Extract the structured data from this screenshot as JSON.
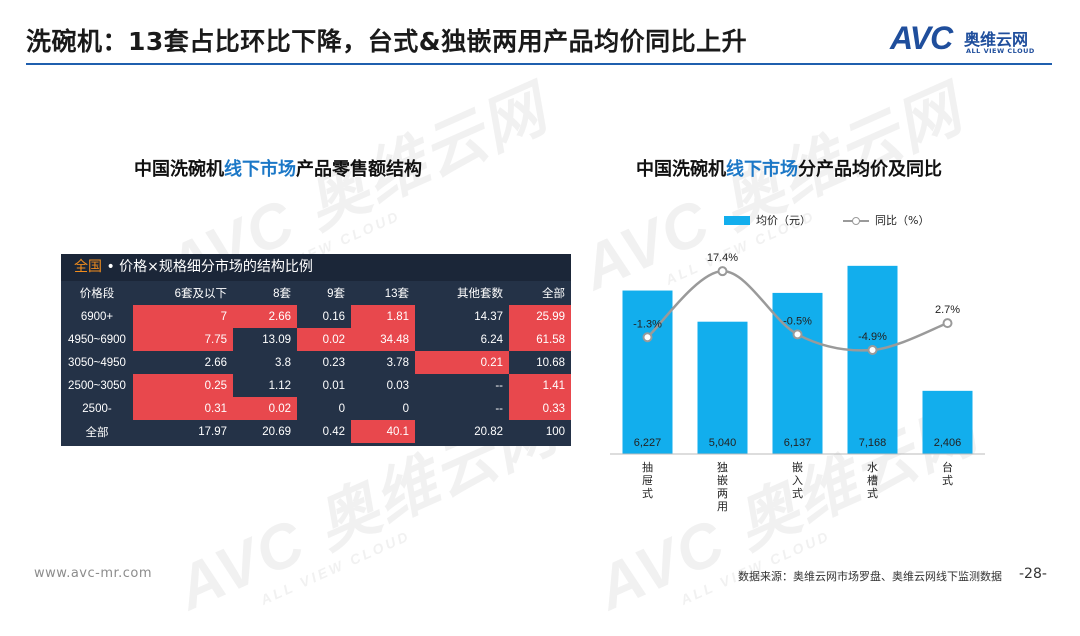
{
  "header": {
    "title": "洗碗机：13套占比环比下降，台式&独嵌两用产品均价同比上升",
    "logo_mark": "AVC",
    "logo_cn": "奥维云网",
    "logo_en": "ALL VIEW CLOUD"
  },
  "watermark": {
    "main": "AVC 奥维云网",
    "sub": "ALL VIEW CLOUD"
  },
  "left": {
    "title_pre": "中国洗碗机",
    "title_hl": "线下市场",
    "title_post": "产品零售额结构",
    "table": {
      "caption_all": "全国",
      "caption_rest": " • 价格×规格细分市场的结构比例",
      "headers": [
        "价格段",
        "6套及以下",
        "8套",
        "9套",
        "13套",
        "其他套数",
        "全部"
      ],
      "rows": [
        {
          "label": "6900+",
          "cells": [
            "7",
            "2.66",
            "0.16",
            "1.81",
            "14.37",
            "25.99"
          ]
        },
        {
          "label": "4950~6900",
          "cells": [
            "7.75",
            "13.09",
            "0.02",
            "34.48",
            "6.24",
            "61.58"
          ]
        },
        {
          "label": "3050~4950",
          "cells": [
            "2.66",
            "3.8",
            "0.23",
            "3.78",
            "0.21",
            "10.68"
          ]
        },
        {
          "label": "2500~3050",
          "cells": [
            "0.25",
            "1.12",
            "0.01",
            "0.03",
            "--",
            "1.41"
          ]
        },
        {
          "label": "2500-",
          "cells": [
            "0.31",
            "0.02",
            "0",
            "0",
            "--",
            "0.33"
          ]
        },
        {
          "label": "全部",
          "cells": [
            "17.97",
            "20.69",
            "0.42",
            "40.1",
            "20.82",
            "100"
          ]
        }
      ],
      "highlight": [
        [
          true,
          true,
          false,
          true,
          false,
          true
        ],
        [
          true,
          false,
          true,
          true,
          false,
          true
        ],
        [
          false,
          false,
          false,
          false,
          true,
          false
        ],
        [
          true,
          false,
          false,
          false,
          false,
          true
        ],
        [
          true,
          true,
          false,
          false,
          false,
          true
        ],
        [
          false,
          false,
          false,
          true,
          false,
          false
        ]
      ],
      "colors": {
        "bg": "#243247",
        "caption_bg": "#1b2638",
        "highlight": "#e8484d",
        "caption_accent": "#f08c1d"
      }
    }
  },
  "right": {
    "title_pre": "中国洗碗机",
    "title_hl": "线下市场",
    "title_post": "分产品均价及同比",
    "legend_bar": "均价（元）",
    "legend_line": "同比（%）"
  },
  "chart_data": {
    "type": "bar",
    "categories": [
      "抽屉式",
      "独嵌两用",
      "嵌入式",
      "水槽式",
      "台式"
    ],
    "series": [
      {
        "name": "均价（元）",
        "type": "bar",
        "values": [
          6227,
          5040,
          6137,
          7168,
          2406
        ],
        "labels": [
          "6,227",
          "5,040",
          "6,137",
          "7,168",
          "2,406"
        ],
        "color": "#12aeed"
      },
      {
        "name": "同比（%）",
        "type": "line",
        "values": [
          -1.3,
          17.4,
          -0.5,
          -4.9,
          2.7
        ],
        "labels": [
          "-1.3%",
          "17.4%",
          "-0.5%",
          "-4.9%",
          "2.7%"
        ],
        "color": "#9a9a9a"
      }
    ],
    "grid": false,
    "legend_position": "top"
  },
  "footer": {
    "url": "www.avc-mr.com",
    "source": "数据来源：奥维云网市场罗盘、奥维云网线下监测数据",
    "page": "-28-"
  }
}
